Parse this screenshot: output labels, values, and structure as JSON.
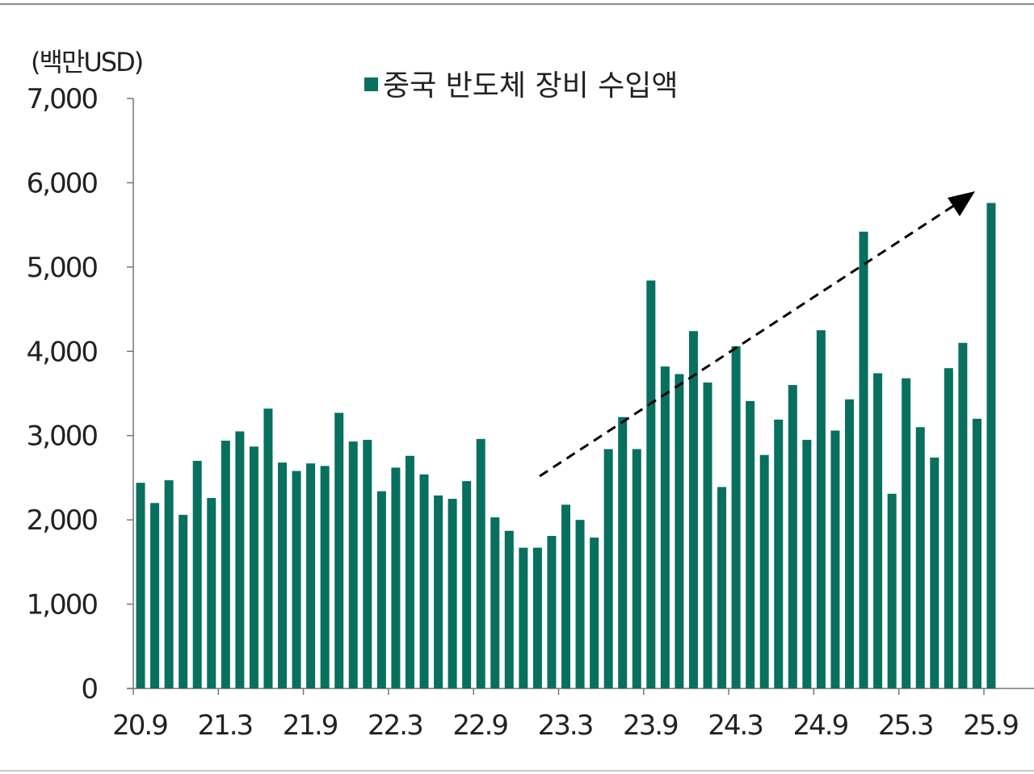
{
  "chart_data": {
    "type": "bar",
    "title": "",
    "unit_label": "(백만USD)",
    "legend": [
      {
        "label": "중국 반도체 장비 수입액",
        "color": "#07705f"
      }
    ],
    "legend_position": "top-center",
    "ylim": [
      0,
      7000
    ],
    "yticks": [
      "0",
      "1,000",
      "2,000",
      "3,000",
      "4,000",
      "5,000",
      "6,000",
      "7,000"
    ],
    "xticks": [
      "20.9",
      "21.3",
      "21.9",
      "22.3",
      "22.9",
      "23.3",
      "23.9",
      "24.3",
      "24.9",
      "25.3",
      "25.9"
    ],
    "start_month": "20.9",
    "values": [
      2440,
      2200,
      2470,
      2060,
      2700,
      2260,
      2940,
      3050,
      2870,
      3320,
      2680,
      2580,
      2670,
      2640,
      3270,
      2930,
      2950,
      2340,
      2620,
      2760,
      2540,
      2290,
      2250,
      2460,
      2960,
      2030,
      1870,
      1670,
      1670,
      1810,
      2180,
      2000,
      1790,
      2840,
      3220,
      2840,
      4840,
      3820,
      3730,
      4240,
      3630,
      2390,
      4060,
      3410,
      2770,
      3190,
      3600,
      2950,
      4250,
      3060,
      3430,
      5420,
      3740,
      2310,
      3680,
      3100,
      2740,
      3800,
      4100,
      3200,
      5760
    ],
    "annotation": "dashed upward trend arrow from 22.12 to 25.9",
    "grid": false
  }
}
